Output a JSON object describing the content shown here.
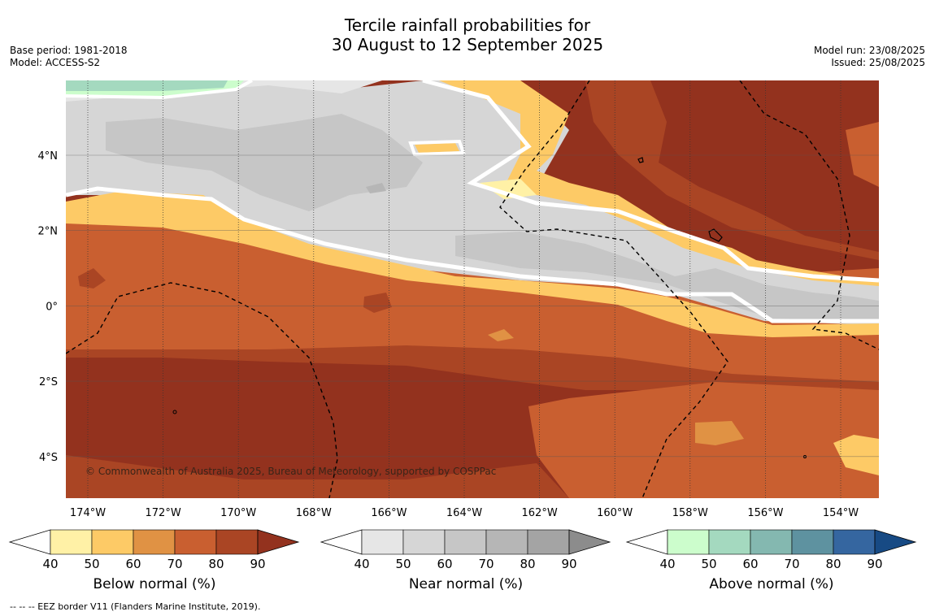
{
  "title": {
    "line1": "Tercile rainfall probabilities for",
    "line2": "30 August to 12 September 2025"
  },
  "meta_left": {
    "base_period": "Base period: 1981-2018",
    "model": "Model: ACCESS-S2"
  },
  "meta_right": {
    "model_run": "Model run: 23/08/2025",
    "issued": "Issued: 25/08/2025"
  },
  "map": {
    "lon_ticks": [
      "174°W",
      "172°W",
      "170°W",
      "168°W",
      "166°W",
      "164°W",
      "162°W",
      "160°W",
      "158°W",
      "156°W",
      "154°W"
    ],
    "lat_ticks": [
      "4°N",
      "2°N",
      "0°",
      "2°S",
      "4°S"
    ],
    "copyright": "© Commonwealth of Australia 2025, Bureau of Meteorology, supported by COSPPac",
    "colors": {
      "below": [
        "#fff1a6",
        "#fdca66",
        "#e09244",
        "#c95f30",
        "#aa4524",
        "#93321e"
      ],
      "near": [
        "#e6e6e6",
        "#d6d6d6",
        "#c6c6c6",
        "#b6b6b6",
        "#a4a4a4",
        "#8c8c8c"
      ],
      "above": [
        "#ccfdcc",
        "#a4d9bf",
        "#84b8b0",
        "#5e92a0",
        "#3566a0",
        "#174a84"
      ]
    }
  },
  "colorbars": [
    {
      "label": "Below normal (%)",
      "ticks": [
        "40",
        "50",
        "60",
        "70",
        "80",
        "90"
      ],
      "scale": "below"
    },
    {
      "label": "Near normal (%)",
      "ticks": [
        "40",
        "50",
        "60",
        "70",
        "80",
        "90"
      ],
      "scale": "near"
    },
    {
      "label": "Above normal (%)",
      "ticks": [
        "40",
        "50",
        "60",
        "70",
        "80",
        "90"
      ],
      "scale": "above"
    }
  ],
  "footnote": "-- -- -- EEZ border V11 (Flanders Marine Institute, 2019)."
}
